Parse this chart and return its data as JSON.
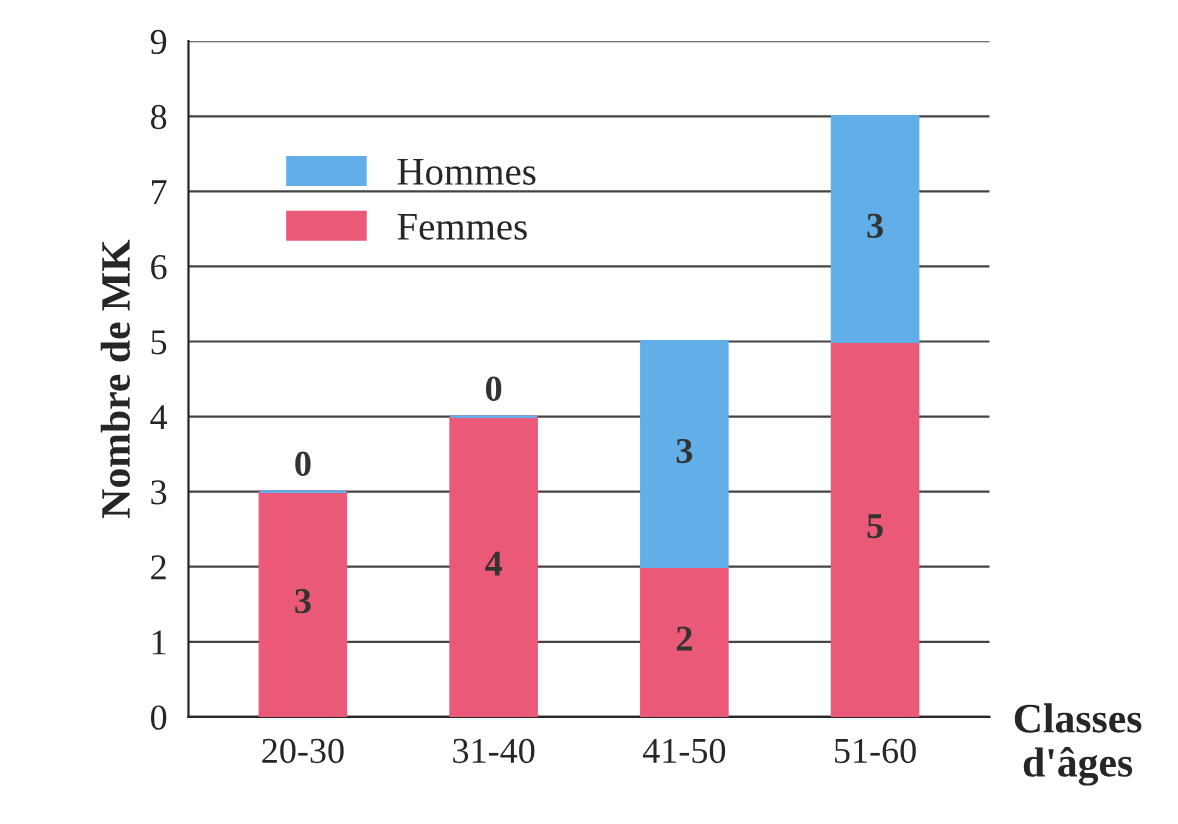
{
  "chart_data": {
    "type": "bar",
    "stacked": true,
    "categories": [
      "20-30",
      "31-40",
      "41-50",
      "51-60"
    ],
    "series": [
      {
        "name": "Femmes",
        "color": "#ea5a78",
        "values": [
          3,
          4,
          2,
          5
        ]
      },
      {
        "name": "Hommes",
        "color": "#62aee8",
        "values": [
          0,
          0,
          3,
          3
        ]
      }
    ],
    "ylabel": "Nombre de MK",
    "xlabel": "Classes d'âges",
    "ylim": [
      0,
      9
    ],
    "yticks": [
      0,
      1,
      2,
      3,
      4,
      5,
      6,
      7,
      8,
      9
    ],
    "grid": "y",
    "legend": "upper left",
    "data_labels": true
  }
}
